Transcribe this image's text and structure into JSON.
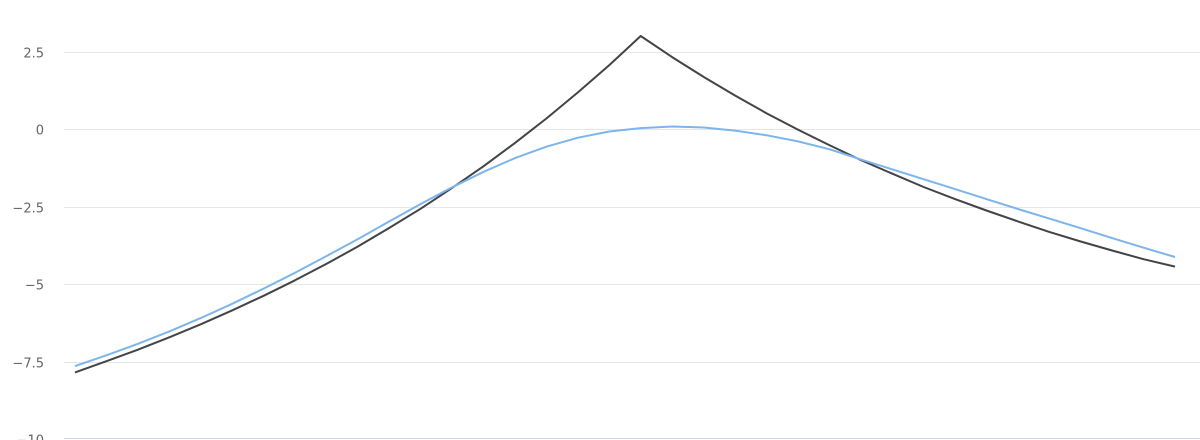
{
  "chart_data": {
    "type": "line",
    "title": "",
    "xlabel": "",
    "ylabel": "",
    "ylim": [
      -10,
      4.16
    ],
    "yticks": [
      2.5,
      0,
      -2.5,
      -5,
      -7.5,
      -10
    ],
    "ytick_labels": [
      "2.5",
      "0",
      "−2.5",
      "−5",
      "−7.5",
      "−10"
    ],
    "grid": true,
    "legend": "none",
    "x": [
      0,
      1,
      2,
      3,
      4,
      5,
      6,
      7,
      8,
      9,
      10,
      11,
      12,
      13,
      14,
      15,
      16,
      17,
      18,
      19,
      20,
      21,
      22,
      23,
      24,
      25,
      26,
      27,
      28,
      29,
      30,
      31,
      32,
      33,
      34,
      35
    ],
    "series": [
      {
        "color": "#434348",
        "values": [
          -7.85,
          -7.49,
          -7.12,
          -6.72,
          -6.3,
          -5.85,
          -5.38,
          -4.88,
          -4.35,
          -3.79,
          -3.19,
          -2.57,
          -1.9,
          -1.2,
          -0.45,
          0.34,
          1.18,
          2.06,
          3.0,
          2.32,
          1.68,
          1.08,
          0.51,
          -0.02,
          -0.52,
          -1.0,
          -1.44,
          -1.87,
          -2.26,
          -2.63,
          -2.98,
          -3.32,
          -3.63,
          -3.92,
          -4.2,
          -4.44
        ]
      },
      {
        "color": "#7cb5ec",
        "values": [
          -7.65,
          -7.3,
          -6.93,
          -6.53,
          -6.1,
          -5.64,
          -5.15,
          -4.64,
          -4.1,
          -3.55,
          -2.98,
          -2.42,
          -1.88,
          -1.38,
          -0.94,
          -0.57,
          -0.28,
          -0.08,
          0.03,
          0.08,
          0.05,
          -0.05,
          -0.2,
          -0.4,
          -0.65,
          -0.98,
          -1.3,
          -1.62,
          -1.94,
          -2.26,
          -2.58,
          -2.89,
          -3.2,
          -3.52,
          -3.83,
          -4.13
        ]
      }
    ]
  }
}
